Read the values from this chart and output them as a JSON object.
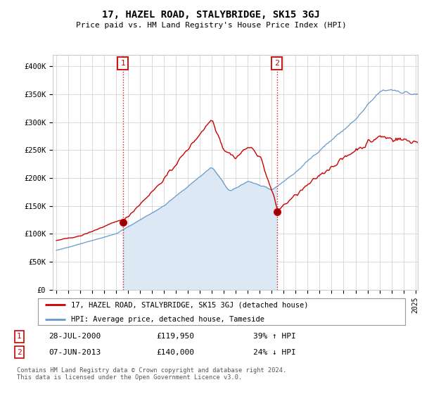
{
  "title": "17, HAZEL ROAD, STALYBRIDGE, SK15 3GJ",
  "subtitle": "Price paid vs. HM Land Registry's House Price Index (HPI)",
  "legend_line1": "17, HAZEL ROAD, STALYBRIDGE, SK15 3GJ (detached house)",
  "legend_line2": "HPI: Average price, detached house, Tameside",
  "annotation1_date": "28-JUL-2000",
  "annotation1_price": "£119,950",
  "annotation1_hpi": "39% ↑ HPI",
  "annotation2_date": "07-JUN-2013",
  "annotation2_price": "£140,000",
  "annotation2_hpi": "24% ↓ HPI",
  "footer": "Contains HM Land Registry data © Crown copyright and database right 2024.\nThis data is licensed under the Open Government Licence v3.0.",
  "hpi_color": "#6699cc",
  "hpi_fill_color": "#dce9f5",
  "price_color": "#cc0000",
  "annotation_color": "#cc0000",
  "background_color": "#ffffff",
  "grid_color": "#cccccc",
  "ylim": [
    0,
    420000
  ],
  "yticks": [
    0,
    50000,
    100000,
    150000,
    200000,
    250000,
    300000,
    350000,
    400000
  ],
  "ytick_labels": [
    "£0",
    "£50K",
    "£100K",
    "£150K",
    "£200K",
    "£250K",
    "£300K",
    "£350K",
    "£400K"
  ],
  "sale1_x": 2000.57,
  "sale1_y": 119950,
  "sale2_x": 2013.43,
  "sale2_y": 140000,
  "vline1_x": 2000.57,
  "vline2_x": 2013.43,
  "xmin": 1995.0,
  "xmax": 2025.2
}
